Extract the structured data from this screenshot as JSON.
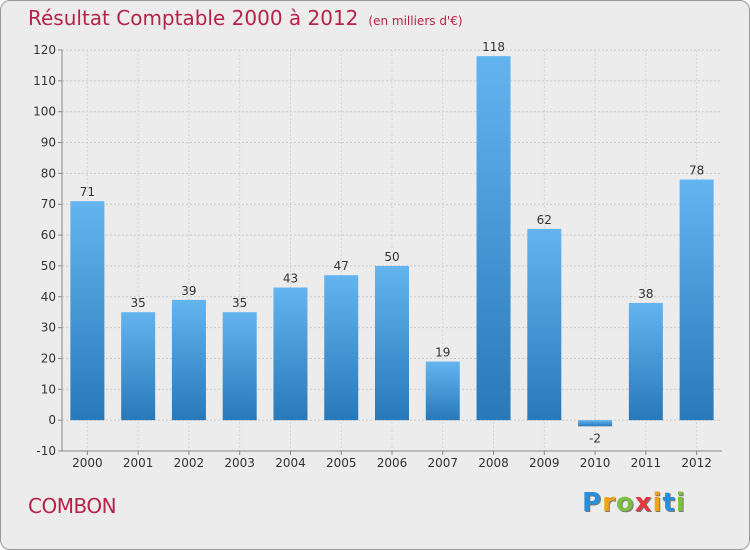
{
  "title": "Résultat Comptable 2000 à 2012",
  "subtitle": "(en milliers d'€)",
  "commune": "COMBON",
  "logo": {
    "letters": [
      "P",
      "r",
      "o",
      "x",
      "i",
      "t",
      "i"
    ],
    "colors": [
      "#2a8fd8",
      "#f2a11a",
      "#7cc043",
      "#e2393f",
      "#f2a11a",
      "#2a8fd8",
      "#7cc043"
    ]
  },
  "colors": {
    "title": "#b5234a",
    "bar_top": "#63b4ef",
    "bar_bottom": "#2979b9"
  },
  "chart_data": {
    "type": "bar",
    "categories": [
      "2000",
      "2001",
      "2002",
      "2003",
      "2004",
      "2005",
      "2006",
      "2007",
      "2008",
      "2009",
      "2010",
      "2011",
      "2012"
    ],
    "values": [
      71,
      35,
      39,
      35,
      43,
      47,
      50,
      19,
      118,
      62,
      -2,
      38,
      78
    ],
    "ylim": [
      -10,
      120
    ],
    "yticks": [
      -10,
      0,
      10,
      20,
      30,
      40,
      50,
      60,
      70,
      80,
      90,
      100,
      110,
      120
    ],
    "grid": true,
    "legend": false
  }
}
